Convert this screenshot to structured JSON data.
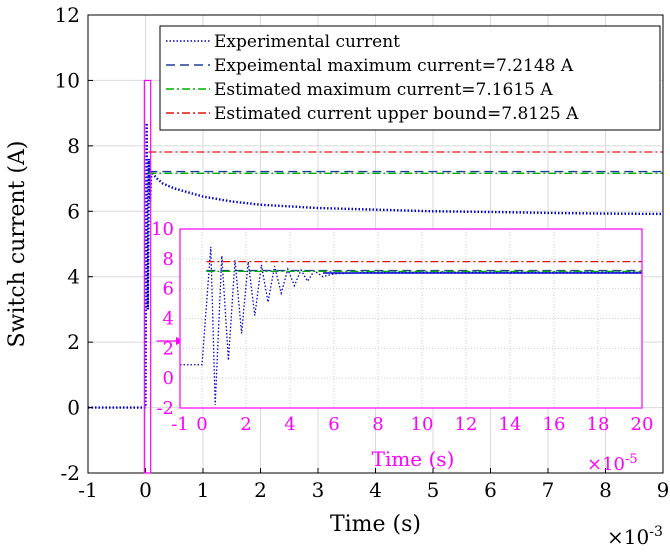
{
  "chart_data": [
    {
      "type": "line",
      "xlabel": "Time (s)",
      "ylabel": "Switch current (A)",
      "x_exponent_label": "×10",
      "x_exponent_power": "-3",
      "xlim": [
        -1,
        9
      ],
      "ylim": [
        -2,
        12
      ],
      "xticks": [
        -1,
        0,
        1,
        2,
        3,
        4,
        5,
        6,
        7,
        8,
        9
      ],
      "yticks": [
        -2,
        0,
        2,
        4,
        6,
        8,
        10,
        12
      ],
      "grid": true,
      "legend_position": "top-right",
      "series": [
        {
          "name": "Experimental current",
          "color": "#0000cc",
          "style": "dotted",
          "x": [
            -1,
            0,
            0.02,
            0.04,
            0.06,
            0.08,
            0.1,
            0.15,
            0.2,
            0.3,
            0.5,
            0.7,
            1,
            1.5,
            2,
            3,
            4,
            5,
            6,
            7,
            8,
            9
          ],
          "y": [
            0,
            0,
            8.7,
            3.0,
            7.6,
            6.3,
            7.2,
            7.1,
            7.0,
            6.85,
            6.7,
            6.6,
            6.45,
            6.3,
            6.2,
            6.1,
            6.05,
            6.0,
            5.98,
            5.95,
            5.93,
            5.92
          ]
        },
        {
          "name": "Expeimental maximum current=7.2148 A",
          "color": "#1f3d99",
          "style": "dashed",
          "x": [
            0.05,
            9
          ],
          "y": [
            7.2148,
            7.2148
          ]
        },
        {
          "name": "Estimated maximum current=7.1615 A",
          "color": "#00b000",
          "style": "dashdot",
          "x": [
            0.05,
            9
          ],
          "y": [
            7.1615,
            7.1615
          ]
        },
        {
          "name": "Estimated current upper bound=7.8125 A",
          "color": "#e01010",
          "style": "dashdot",
          "x": [
            0.05,
            9
          ],
          "y": [
            7.8125,
            7.8125
          ]
        }
      ]
    },
    {
      "type": "line",
      "xlabel": "Time (s)",
      "x_exponent_label": "×10",
      "x_exponent_power": "-5",
      "xlim": [
        -1,
        20
      ],
      "ylim": [
        -2,
        10
      ],
      "xticks": [
        -1,
        0,
        2,
        4,
        6,
        8,
        10,
        12,
        14,
        16,
        18,
        20
      ],
      "yticks": [
        -2,
        0,
        2,
        4,
        6,
        8,
        10
      ],
      "grid": true,
      "color": "#ff00ff",
      "series": [
        {
          "name": "Experimental current",
          "color": "#0000cc",
          "style": "dotted",
          "x": [
            -1,
            0,
            0.4,
            0.6,
            0.9,
            1.2,
            1.5,
            1.8,
            2.1,
            2.4,
            2.7,
            3.0,
            3.3,
            3.6,
            3.9,
            4.2,
            4.5,
            4.8,
            5.1,
            5.5,
            6,
            7,
            8,
            10,
            12,
            14,
            16,
            18,
            20
          ],
          "y": [
            0.9,
            0.9,
            8.8,
            -1.8,
            8.2,
            1.2,
            7.9,
            3.0,
            7.8,
            4.2,
            7.6,
            5.1,
            7.5,
            5.7,
            7.3,
            6.2,
            7.25,
            6.5,
            7.2,
            6.8,
            7.0,
            7.05,
            7.1,
            7.1,
            7.1,
            7.1,
            7.1,
            7.1,
            7.1
          ]
        },
        {
          "name": "Expeimental maximum current=7.2148 A",
          "color": "#1f3d99",
          "style": "dashed",
          "x": [
            0.2,
            20
          ],
          "y": [
            7.2148,
            7.2148
          ]
        },
        {
          "name": "Estimated maximum current=7.1615 A",
          "color": "#00b000",
          "style": "dashdot",
          "x": [
            0.2,
            20
          ],
          "y": [
            7.1615,
            7.1615
          ]
        },
        {
          "name": "Estimated current upper bound=7.8125 A",
          "color": "#e01010",
          "style": "dashdot",
          "x": [
            0.2,
            20
          ],
          "y": [
            7.8125,
            7.8125
          ]
        }
      ]
    }
  ],
  "zoom_box": {
    "x_range": [
      -0.02,
      0.09
    ],
    "y_range": [
      -2,
      10
    ]
  },
  "colors": {
    "inset": "#ff00ff",
    "axis": "#000000",
    "grid": "#d9d9d9"
  }
}
